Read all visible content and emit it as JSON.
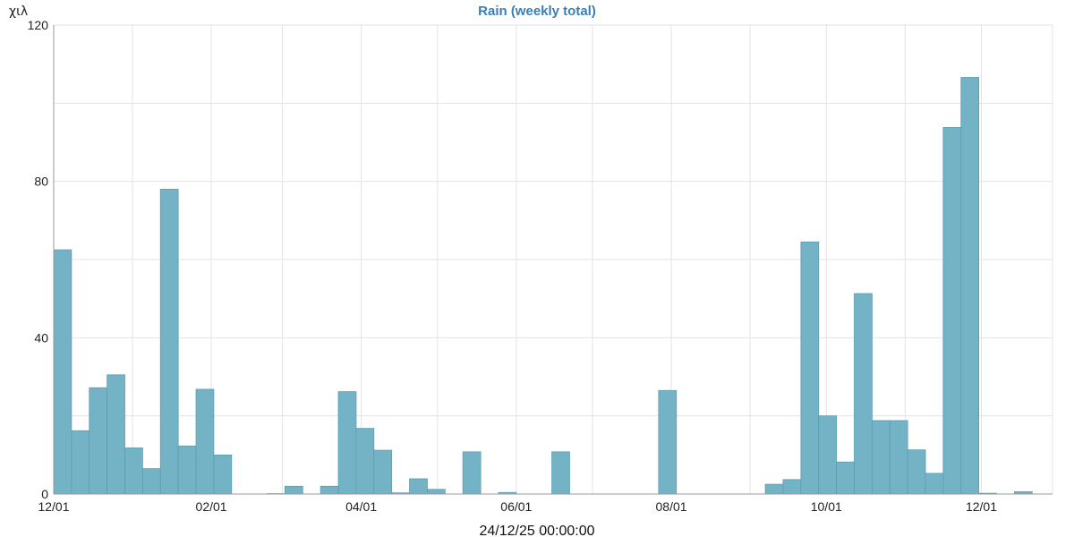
{
  "chart_data": {
    "type": "bar",
    "title": "Rain (weekly total)",
    "unit_label": "χιλ",
    "timestamp": "24/12/25 00:00:00",
    "ylim": [
      0,
      120
    ],
    "yticks": [
      0,
      40,
      80,
      120
    ],
    "grid": true,
    "bar_color": "#74b3c5",
    "title_color": "#3a7fb8",
    "x_domain": [
      "2024-12-01",
      "2025-12-29"
    ],
    "xticks": [
      {
        "date": "2024-12-01",
        "label": "12/01"
      },
      {
        "date": "2025-02-01",
        "label": "02/01"
      },
      {
        "date": "2025-04-01",
        "label": "04/01"
      },
      {
        "date": "2025-06-01",
        "label": "06/01"
      },
      {
        "date": "2025-08-01",
        "label": "08/01"
      },
      {
        "date": "2025-10-01",
        "label": "10/01"
      },
      {
        "date": "2025-12-01",
        "label": "12/01"
      }
    ],
    "x_minor_ticks": [
      "2025-01-01",
      "2025-03-01",
      "2025-05-01",
      "2025-07-01",
      "2025-09-01",
      "2025-11-01"
    ],
    "series": [
      {
        "week_start": [
          "2024-12-01",
          "2024-12-08",
          "2024-12-15",
          "2024-12-22",
          "2024-12-29",
          "2025-01-05",
          "2025-01-12",
          "2025-01-19",
          "2025-01-26",
          "2025-02-02",
          "2025-02-09",
          "2025-02-16",
          "2025-02-23",
          "2025-03-02",
          "2025-03-09",
          "2025-03-16",
          "2025-03-23",
          "2025-03-30",
          "2025-04-06",
          "2025-04-13",
          "2025-04-20",
          "2025-04-27",
          "2025-05-04",
          "2025-05-11",
          "2025-05-18",
          "2025-05-25",
          "2025-06-01",
          "2025-06-08",
          "2025-06-15",
          "2025-06-22",
          "2025-06-29",
          "2025-07-06",
          "2025-07-13",
          "2025-07-20",
          "2025-07-27",
          "2025-08-03",
          "2025-08-10",
          "2025-08-17",
          "2025-08-24",
          "2025-08-31",
          "2025-09-07",
          "2025-09-14",
          "2025-09-21",
          "2025-09-28",
          "2025-10-05",
          "2025-10-12",
          "2025-10-19",
          "2025-10-26",
          "2025-11-02",
          "2025-11-09",
          "2025-11-16",
          "2025-11-23",
          "2025-11-30",
          "2025-12-07",
          "2025-12-14",
          "2025-12-21"
        ],
        "values": [
          62.5,
          16.2,
          27.2,
          30.5,
          11.8,
          6.5,
          78.0,
          12.3,
          26.8,
          10.0,
          0,
          0,
          0.1,
          2.0,
          0,
          2.0,
          26.2,
          16.8,
          11.2,
          0.3,
          3.9,
          1.2,
          0,
          10.8,
          0,
          0.4,
          0,
          0,
          10.8,
          0,
          0,
          0,
          0,
          0,
          26.5,
          0,
          0,
          0,
          0,
          0,
          2.5,
          3.7,
          64.5,
          20.0,
          8.2,
          51.3,
          18.8,
          18.8,
          11.3,
          5.3,
          93.8,
          106.6,
          0.2,
          0,
          0.6,
          0
        ]
      }
    ]
  }
}
